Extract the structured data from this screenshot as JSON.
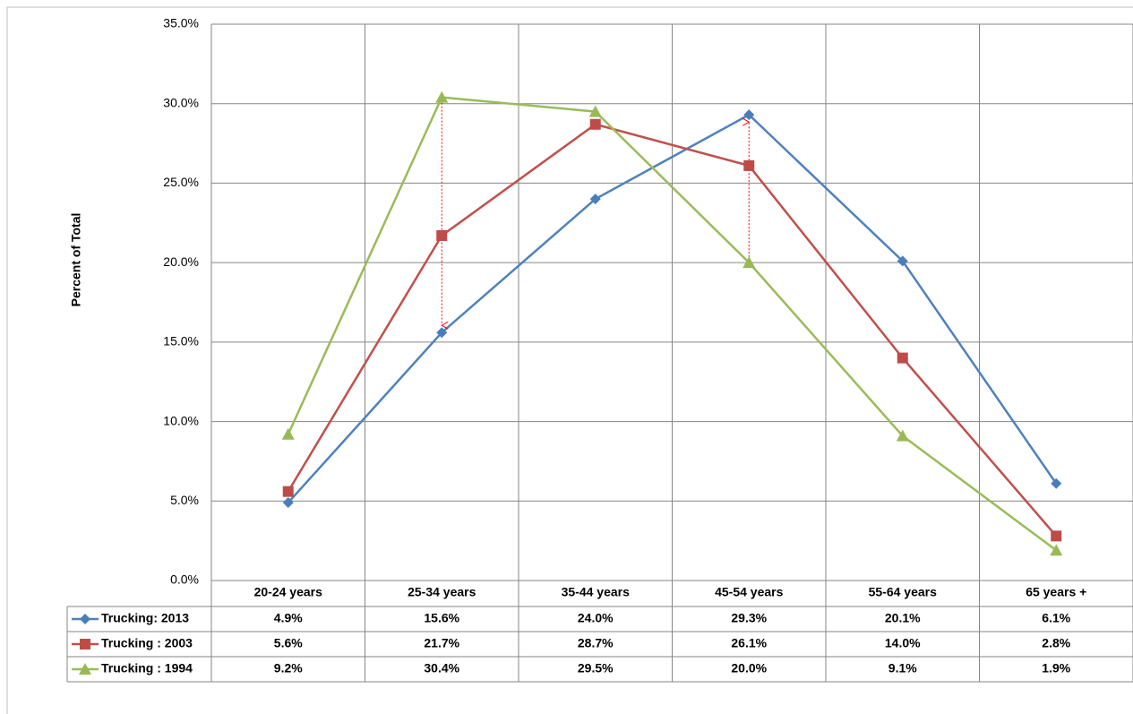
{
  "chart_data": {
    "type": "line",
    "y_label": "Percent of Total",
    "categories": [
      "20-24 years",
      "25-34 years",
      "35-44 years",
      "45-54 years",
      "55-64 years",
      "65 years +"
    ],
    "series": [
      {
        "name": "Trucking: 2013",
        "color": "#4a7ebb",
        "marker": "diamond",
        "values": [
          4.9,
          15.6,
          24.0,
          29.3,
          20.1,
          6.1
        ],
        "value_labels": [
          "4.9%",
          "15.6%",
          "24.0%",
          "29.3%",
          "20.1%",
          "6.1%"
        ]
      },
      {
        "name": "Trucking : 2003",
        "color": "#be4b48",
        "marker": "square",
        "values": [
          5.6,
          21.7,
          28.7,
          26.1,
          14.0,
          2.8
        ],
        "value_labels": [
          "5.6%",
          "21.7%",
          "28.7%",
          "26.1%",
          "14.0%",
          "2.8%"
        ]
      },
      {
        "name": "Trucking : 1994",
        "color": "#98b954",
        "marker": "triangle",
        "values": [
          9.2,
          30.4,
          29.5,
          20.0,
          9.1,
          1.9
        ],
        "value_labels": [
          "9.2%",
          "30.4%",
          "29.5%",
          "20.0%",
          "9.1%",
          "1.9%"
        ]
      }
    ],
    "ylim": [
      0,
      35
    ],
    "yticks": [
      {
        "value": 0,
        "label": "0.0%"
      },
      {
        "value": 5,
        "label": "5.0%"
      },
      {
        "value": 10,
        "label": "10.0%"
      },
      {
        "value": 15,
        "label": "15.0%"
      },
      {
        "value": 20,
        "label": "20.0%"
      },
      {
        "value": 25,
        "label": "25.0%"
      },
      {
        "value": 30,
        "label": "30.0%"
      },
      {
        "value": 35,
        "label": "35.0%"
      }
    ],
    "grid": true,
    "data_table": true
  }
}
